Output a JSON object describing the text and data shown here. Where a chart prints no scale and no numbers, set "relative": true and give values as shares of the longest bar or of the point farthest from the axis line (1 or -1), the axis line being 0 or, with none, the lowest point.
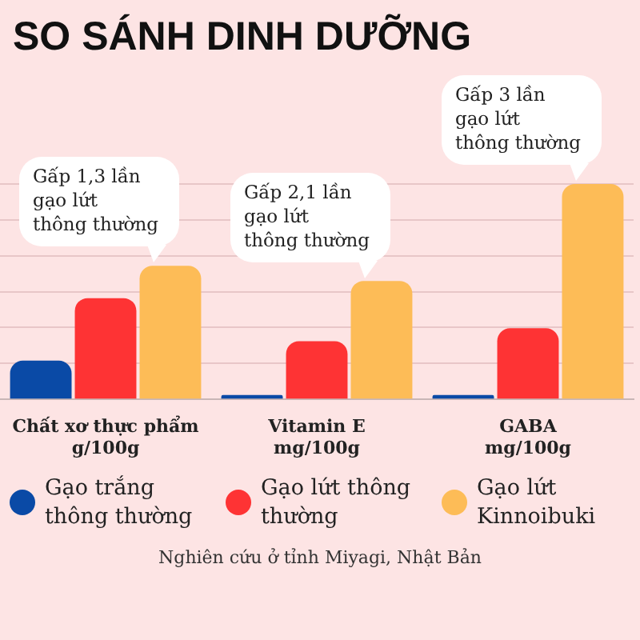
{
  "chart_data": {
    "type": "bar",
    "title": "SO SÁNH DINH DƯỠNG",
    "relative": true,
    "grid": "y",
    "legend": "bottom",
    "categories": [
      "Chất xơ thực phẩm\ng/100g",
      "Vitamin E\nmg/100g",
      "GABA\nmg/100g"
    ],
    "series": [
      {
        "name": "Gạo trắng thông thường",
        "color": "#0a4aa6",
        "values": [
          0.18,
          0.02,
          0.02
        ]
      },
      {
        "name": "Gạo lứt thông thường",
        "color": "#fe3334",
        "values": [
          0.47,
          0.27,
          0.33
        ]
      },
      {
        "name": "Gạo lứt Kinnoibuki",
        "color": "#fdbc57",
        "values": [
          0.62,
          0.55,
          1
        ]
      }
    ],
    "annotations": [
      "Gấp 1,3 lần\ngạo lứt\nthông thường",
      "Gấp 2,1 lần\ngạo lứt\nthông thường",
      "Gấp 3 lần\ngạo lứt\nthông thường",
      "Nghiên cứu ở tỉnh Miyagi, Nhật Bản"
    ]
  }
}
